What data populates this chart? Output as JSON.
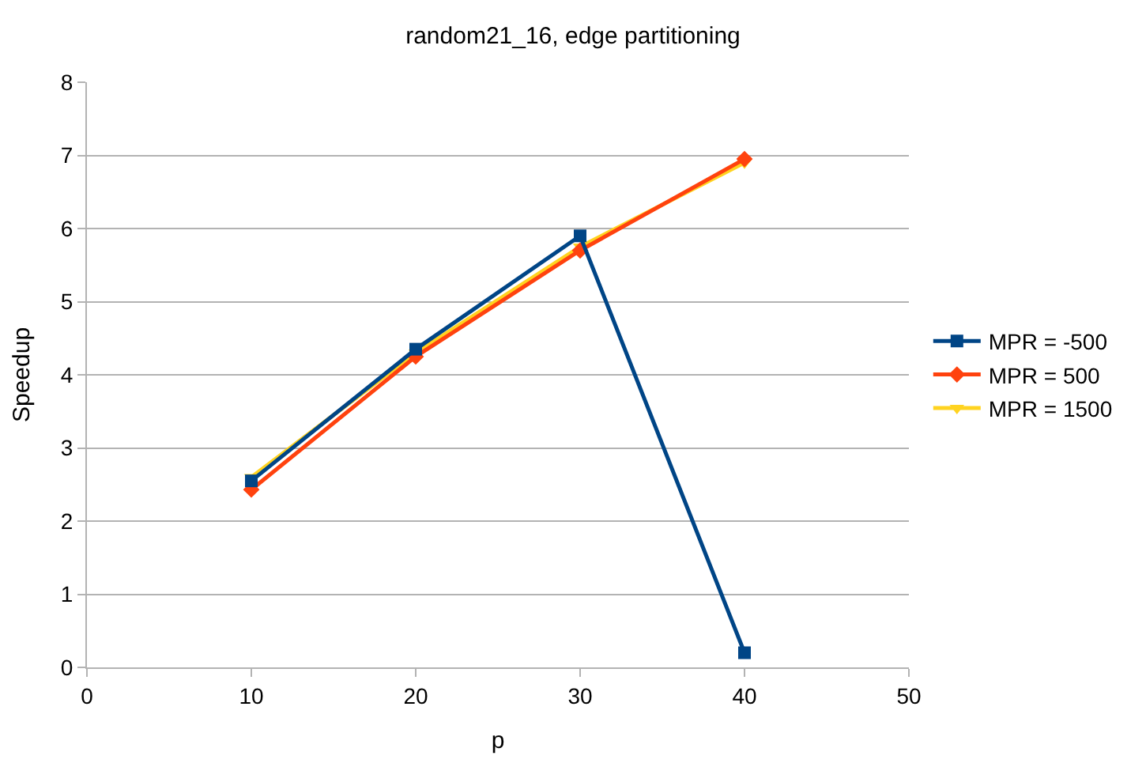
{
  "chart_data": {
    "type": "line",
    "title": "random21_16, edge partitioning",
    "xlabel": "p",
    "ylabel": "Speedup",
    "x": [
      10,
      20,
      30,
      40
    ],
    "series": [
      {
        "name": "MPR = -500",
        "color": "#004586",
        "marker": "square",
        "values": [
          2.55,
          4.35,
          5.9,
          0.2
        ]
      },
      {
        "name": "MPR = 500",
        "color": "#ff420e",
        "marker": "diamond",
        "values": [
          2.43,
          4.25,
          5.7,
          6.95
        ]
      },
      {
        "name": "MPR = 1500",
        "color": "#ffd320",
        "marker": "triangle",
        "values": [
          2.6,
          4.3,
          5.75,
          6.9
        ]
      }
    ],
    "xlim": [
      0,
      50
    ],
    "xticks": [
      0,
      10,
      20,
      30,
      40,
      50
    ],
    "ylim": [
      0,
      8
    ],
    "yticks": [
      0,
      1,
      2,
      3,
      4,
      5,
      6,
      7,
      8
    ],
    "grid": "y",
    "legend": "right"
  }
}
